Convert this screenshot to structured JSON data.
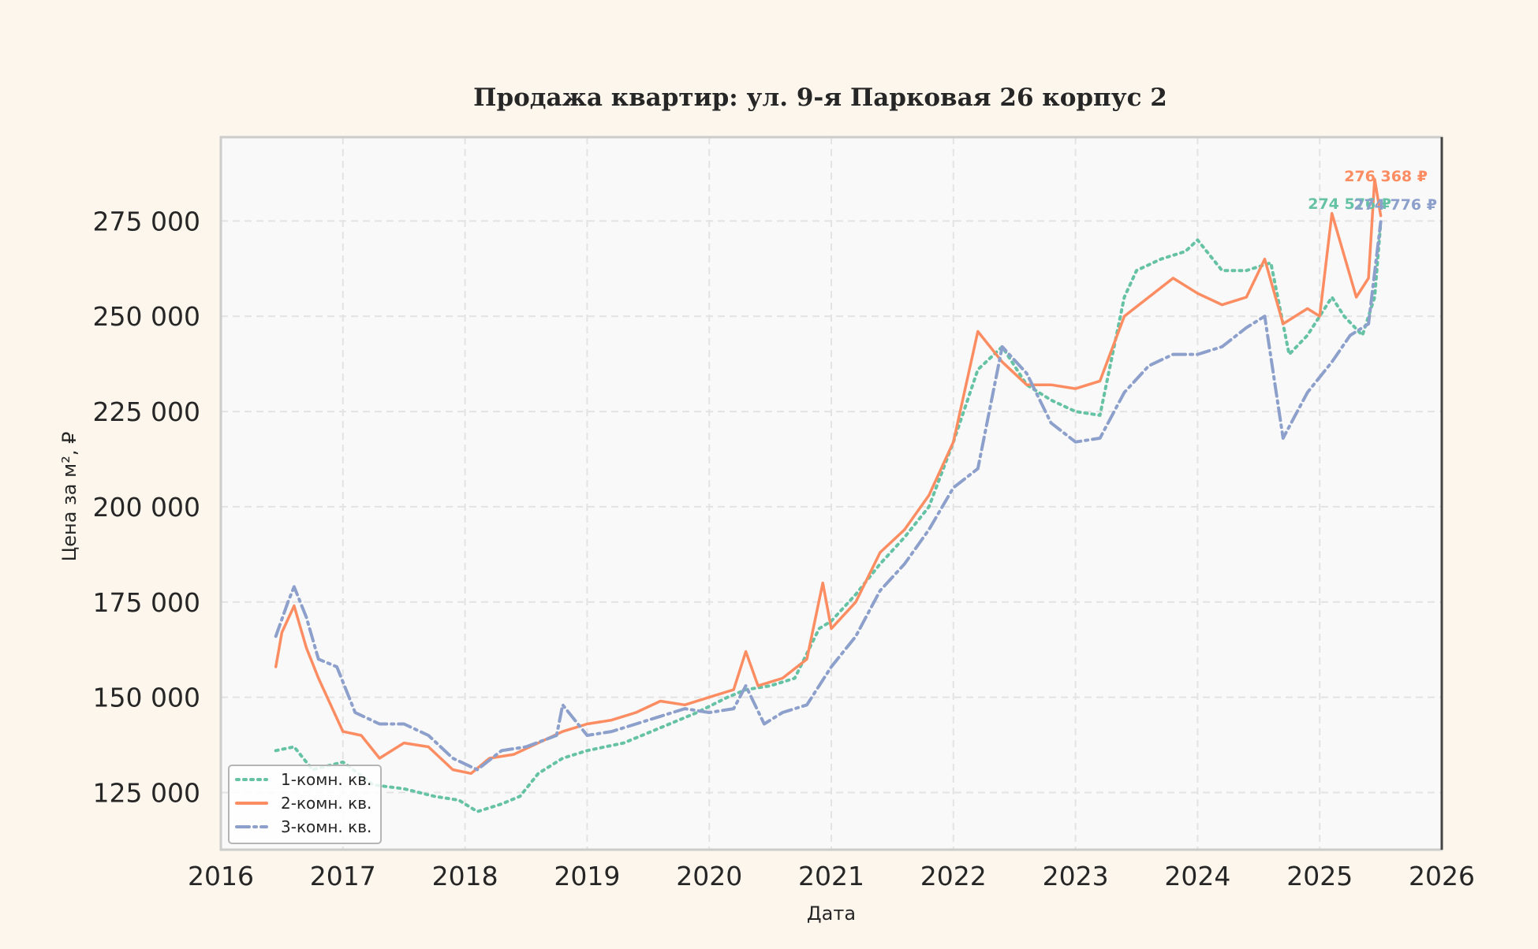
{
  "chart_data": {
    "type": "line",
    "title": "Продажа квартир: ул. 9-я Парковая 26 корпус 2",
    "xlabel": "Дата",
    "ylabel": "Цена за м², ₽",
    "xlim": [
      2016,
      2026
    ],
    "ylim": [
      110000,
      297000
    ],
    "x_ticks": [
      "2016",
      "2017",
      "2018",
      "2019",
      "2020",
      "2021",
      "2022",
      "2023",
      "2024",
      "2025",
      "2026"
    ],
    "y_ticks": [
      {
        "value": 125000,
        "label": "125 000"
      },
      {
        "value": 150000,
        "label": "150 000"
      },
      {
        "value": 175000,
        "label": "175 000"
      },
      {
        "value": 200000,
        "label": "200 000"
      },
      {
        "value": 225000,
        "label": "225 000"
      },
      {
        "value": 250000,
        "label": "250 000"
      },
      {
        "value": 275000,
        "label": "275 000"
      }
    ],
    "grid": true,
    "legend_position": "lower-left",
    "series": [
      {
        "name": "1-комн. кв.",
        "color": "#66c2a5",
        "dash": "dotted",
        "end_label": "274 576 ₽",
        "x": [
          2016.45,
          2016.6,
          2016.75,
          2017.0,
          2017.25,
          2017.5,
          2017.75,
          2017.95,
          2018.1,
          2018.3,
          2018.45,
          2018.6,
          2018.8,
          2019.0,
          2019.3,
          2019.6,
          2019.9,
          2020.15,
          2020.3,
          2020.5,
          2020.7,
          2020.9,
          2021.0,
          2021.2,
          2021.4,
          2021.6,
          2021.8,
          2022.0,
          2022.2,
          2022.4,
          2022.6,
          2022.8,
          2023.0,
          2023.2,
          2023.4,
          2023.5,
          2023.7,
          2023.9,
          2024.0,
          2024.2,
          2024.4,
          2024.6,
          2024.75,
          2024.9,
          2025.1,
          2025.2,
          2025.35,
          2025.45,
          2025.5
        ],
        "y": [
          136000,
          137000,
          131000,
          133000,
          127000,
          126000,
          124000,
          123000,
          120000,
          122000,
          124000,
          130000,
          134000,
          136000,
          138000,
          142000,
          146000,
          150000,
          152000,
          153000,
          155000,
          168000,
          170000,
          177000,
          185000,
          192000,
          200000,
          217000,
          236000,
          242000,
          232000,
          228000,
          225000,
          224000,
          255000,
          262000,
          265000,
          267000,
          270000,
          262000,
          262000,
          264000,
          240000,
          245000,
          255000,
          250000,
          245000,
          255000,
          274576
        ]
      },
      {
        "name": "2-комн. кв.",
        "color": "#fc8d62",
        "dash": "solid",
        "end_label": "276 368 ₽",
        "x": [
          2016.45,
          2016.5,
          2016.6,
          2016.7,
          2016.8,
          2017.0,
          2017.15,
          2017.3,
          2017.5,
          2017.7,
          2017.9,
          2018.05,
          2018.2,
          2018.4,
          2018.6,
          2018.8,
          2019.0,
          2019.2,
          2019.4,
          2019.6,
          2019.8,
          2020.0,
          2020.2,
          2020.3,
          2020.4,
          2020.6,
          2020.8,
          2020.93,
          2021.0,
          2021.2,
          2021.4,
          2021.6,
          2021.8,
          2022.0,
          2022.2,
          2022.4,
          2022.6,
          2022.8,
          2023.0,
          2023.2,
          2023.4,
          2023.6,
          2023.8,
          2024.0,
          2024.2,
          2024.4,
          2024.55,
          2024.7,
          2024.9,
          2025.0,
          2025.1,
          2025.3,
          2025.4,
          2025.45,
          2025.5
        ],
        "y": [
          158000,
          167000,
          174000,
          163000,
          155000,
          141000,
          140000,
          134000,
          138000,
          137000,
          131000,
          130000,
          134000,
          135000,
          138000,
          141000,
          143000,
          144000,
          146000,
          149000,
          148000,
          150000,
          152000,
          162000,
          153000,
          155000,
          160000,
          180000,
          168000,
          175000,
          188000,
          194000,
          203000,
          217000,
          246000,
          238000,
          232000,
          232000,
          231000,
          233000,
          250000,
          255000,
          260000,
          256000,
          253000,
          255000,
          265000,
          248000,
          252000,
          250000,
          277000,
          255000,
          260000,
          286000,
          276368
        ]
      },
      {
        "name": "3-комн. кв.",
        "color": "#8da0cb",
        "dash": "dashdot",
        "end_label": "274 776 ₽",
        "x": [
          2016.45,
          2016.55,
          2016.6,
          2016.7,
          2016.8,
          2016.95,
          2017.1,
          2017.3,
          2017.5,
          2017.7,
          2017.9,
          2018.1,
          2018.3,
          2018.5,
          2018.75,
          2018.8,
          2019.0,
          2019.2,
          2019.4,
          2019.6,
          2019.8,
          2020.0,
          2020.2,
          2020.3,
          2020.45,
          2020.6,
          2020.8,
          2021.0,
          2021.2,
          2021.4,
          2021.6,
          2021.8,
          2022.0,
          2022.2,
          2022.4,
          2022.6,
          2022.8,
          2023.0,
          2023.2,
          2023.4,
          2023.6,
          2023.8,
          2024.0,
          2024.2,
          2024.4,
          2024.55,
          2024.7,
          2024.9,
          2025.1,
          2025.25,
          2025.4,
          2025.5
        ],
        "y": [
          166000,
          175000,
          179000,
          171000,
          160000,
          158000,
          146000,
          143000,
          143000,
          140000,
          134000,
          131000,
          136000,
          137000,
          140000,
          148000,
          140000,
          141000,
          143000,
          145000,
          147000,
          146000,
          147000,
          153000,
          143000,
          146000,
          148000,
          158000,
          166000,
          178000,
          185000,
          194000,
          205000,
          210000,
          242000,
          235000,
          222000,
          217000,
          218000,
          230000,
          237000,
          240000,
          240000,
          242000,
          247000,
          250000,
          218000,
          230000,
          238000,
          245000,
          248000,
          274776
        ]
      }
    ]
  }
}
